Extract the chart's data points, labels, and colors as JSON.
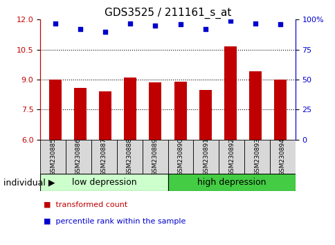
{
  "title": "GDS3525 / 211161_s_at",
  "samples": [
    "GSM230885",
    "GSM230886",
    "GSM230887",
    "GSM230888",
    "GSM230889",
    "GSM230890",
    "GSM230891",
    "GSM230892",
    "GSM230893",
    "GSM230894"
  ],
  "transformed_counts": [
    9.0,
    8.6,
    8.4,
    9.1,
    8.85,
    8.9,
    8.5,
    10.65,
    9.4,
    9.0
  ],
  "percentile_ranks": [
    97,
    92,
    90,
    97,
    95,
    96,
    92,
    99,
    97,
    96
  ],
  "ylim_left": [
    6,
    12
  ],
  "yticks_left": [
    6,
    7.5,
    9,
    10.5,
    12
  ],
  "yticks_right": [
    0,
    25,
    50,
    75,
    100
  ],
  "ylim_right": [
    0,
    100
  ],
  "bar_color": "#c00000",
  "dot_color": "#0000cc",
  "group1_label": "low depression",
  "group2_label": "high depression",
  "group1_color": "#ccffcc",
  "group2_color": "#44cc44",
  "group1_count": 5,
  "group2_count": 5,
  "legend_bar_label": "transformed count",
  "legend_dot_label": "percentile rank within the sample",
  "individual_label": "individual",
  "background_color": "#ffffff",
  "title_fontsize": 11,
  "tick_fontsize": 8,
  "label_fontsize": 9
}
